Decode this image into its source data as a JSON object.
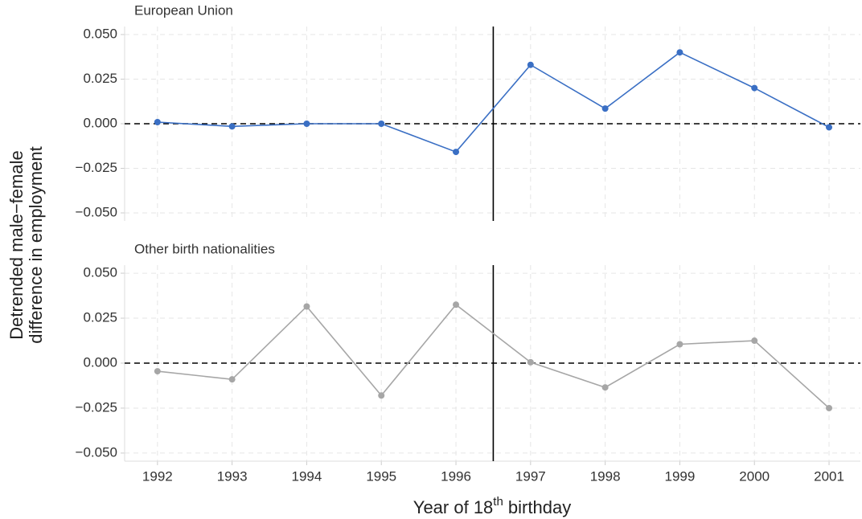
{
  "chart_data": [
    {
      "type": "line",
      "title": "European Union",
      "x": [
        1992,
        1993,
        1994,
        1995,
        1996,
        1997,
        1998,
        1999,
        2000,
        2001
      ],
      "series": [
        {
          "color": "#3a6fc4",
          "values": [
            0.0009,
            -0.0015,
            0.0,
            0.0,
            -0.0158,
            0.033,
            0.0085,
            0.04,
            0.02,
            -0.002
          ]
        }
      ],
      "xlim": [
        1991.56,
        2001.42
      ],
      "xticks": [
        1992,
        1993,
        1994,
        1995,
        1996,
        1997,
        1998,
        1999,
        2000,
        2001
      ],
      "ylim": [
        -0.0545,
        0.0545
      ],
      "yticks": [
        {
          "value": 0.05,
          "label": "0.050"
        },
        {
          "value": 0.025,
          "label": "0.025"
        },
        {
          "value": 0,
          "label": "0.000"
        },
        {
          "value": -0.025,
          "label": "−0.025"
        },
        {
          "value": -0.05,
          "label": "−0.050"
        }
      ],
      "grid": true,
      "hline": 0,
      "vline": 1996.5
    },
    {
      "type": "line",
      "title": "Other birth nationalities",
      "x": [
        1992,
        1993,
        1994,
        1995,
        1996,
        1997,
        1998,
        1999,
        2000,
        2001
      ],
      "series": [
        {
          "color": "#a6a6a6",
          "values": [
            -0.0045,
            -0.009,
            0.0315,
            -0.018,
            0.0325,
            0.0005,
            -0.0135,
            0.0105,
            0.0125,
            -0.025
          ]
        }
      ],
      "xlim": [
        1991.56,
        2001.42
      ],
      "xticks": [
        1992,
        1993,
        1994,
        1995,
        1996,
        1997,
        1998,
        1999,
        2000,
        2001
      ],
      "ylim": [
        -0.0545,
        0.0545
      ],
      "yticks": [
        {
          "value": 0.05,
          "label": "0.050"
        },
        {
          "value": 0.025,
          "label": "0.025"
        },
        {
          "value": 0,
          "label": "0.000"
        },
        {
          "value": -0.025,
          "label": "−0.025"
        },
        {
          "value": -0.05,
          "label": "−0.050"
        }
      ],
      "grid": true,
      "hline": 0,
      "vline": 1996.5
    }
  ],
  "axis_titles": {
    "y": [
      "Detrended male−female",
      "difference in employment"
    ],
    "x": [
      "Year of 18",
      "th",
      " birthday"
    ]
  }
}
